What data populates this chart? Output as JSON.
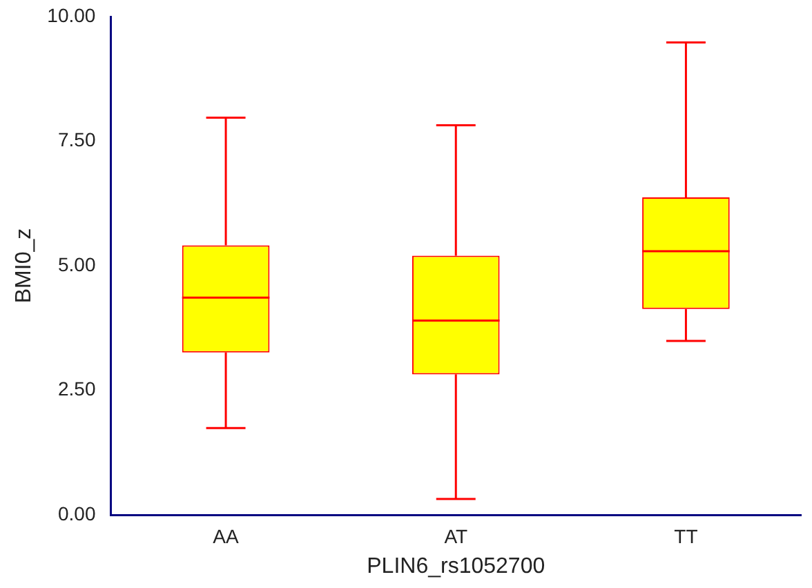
{
  "chart_data": {
    "type": "box",
    "xlabel": "PLIN6_rs1052700",
    "ylabel": "BMI0_z",
    "categories": [
      "AA",
      "AT",
      "TT"
    ],
    "color": "#ff0000",
    "boxes": [
      {
        "low": 1.74,
        "q1": 3.26,
        "median": 4.36,
        "q3": 5.41,
        "high": 7.97
      },
      {
        "low": 0.32,
        "q1": 2.82,
        "median": 3.9,
        "q3": 5.2,
        "high": 7.82
      },
      {
        "low": 3.49,
        "q1": 4.13,
        "median": 5.29,
        "q3": 6.37,
        "high": 9.48
      }
    ],
    "ylim": [
      0,
      10
    ],
    "yticks": [
      {
        "value": 0,
        "label": "0.00"
      },
      {
        "value": 2.5,
        "label": "2.50"
      },
      {
        "value": 5,
        "label": "5.00"
      },
      {
        "value": 7.5,
        "label": "7.50"
      },
      {
        "value": 10,
        "label": "10.00"
      }
    ],
    "grid": false
  }
}
